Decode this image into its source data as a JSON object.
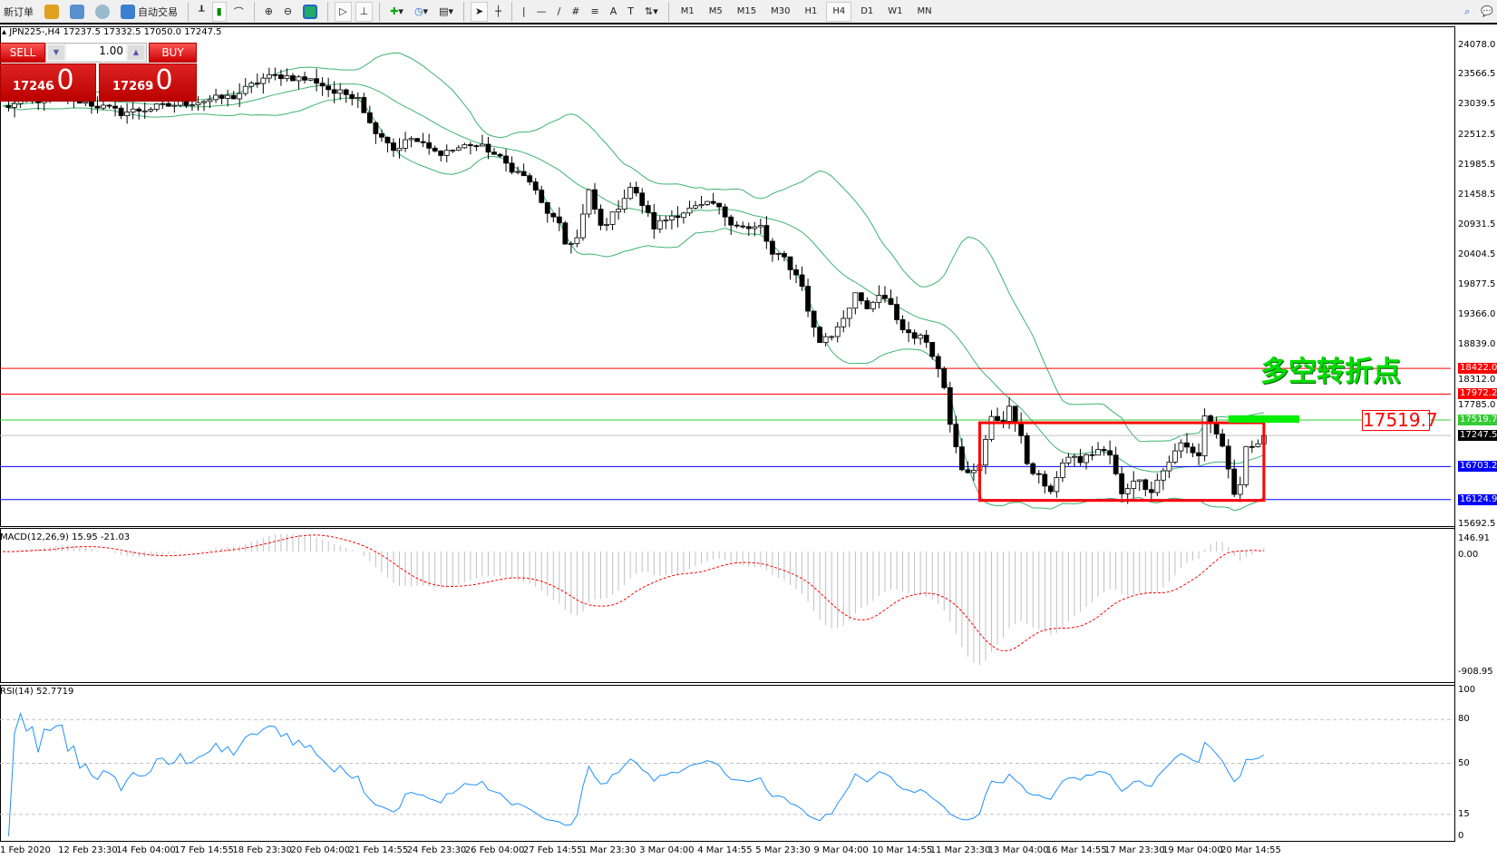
{
  "toolbar": {
    "new_order": "新订单",
    "auto_trade": "自动交易",
    "timeframes": [
      "M1",
      "M5",
      "M15",
      "M30",
      "H1",
      "H4",
      "D1",
      "W1",
      "MN"
    ],
    "active_timeframe": "H4",
    "icons": [
      "gold-bars-icon",
      "market-watch-icon",
      "signals-icon",
      "auto-trade-icon",
      "bar-chart-icon",
      "candlestick-icon",
      "line-chart-icon",
      "zoom-in-icon",
      "zoom-out-icon",
      "tile-windows-icon",
      "auto-scroll-icon",
      "chart-shift-icon",
      "indicators-icon",
      "periods-icon",
      "templates-icon",
      "cursor-icon",
      "crosshair-icon",
      "vertical-line-icon",
      "horizontal-line-icon",
      "trendline-icon",
      "fibonacci-icon",
      "fibo-fan-icon",
      "text-icon",
      "text-label-icon",
      "arrows-icon",
      "search-icon",
      "chat-icon"
    ]
  },
  "chart": {
    "symbol_line": "JPN225-,H4  17237.5 17332.5 17050.0 17247.5",
    "macd_label": "MACD(12,26,9) 15.95 -21.03",
    "rsi_label": "RSI(14) 52.7719",
    "annotation": "多空转折点",
    "price_box": "17519.7",
    "price_axis": [
      "24078.0",
      "23566.5",
      "23039.5",
      "22512.5",
      "21985.5",
      "21458.5",
      "20931.5",
      "20404.5",
      "19877.5",
      "19366.0",
      "18839.0",
      "18312.0",
      "17785.0",
      "15692.5"
    ],
    "price_axis_range": [
      15692.5,
      24078.0
    ],
    "macd_axis": [
      "146.91",
      "0.00",
      "-908.95"
    ],
    "rsi_axis": [
      "100",
      "80",
      "50",
      "15",
      "0"
    ],
    "dates": [
      "1 Feb 2020",
      "12 Feb 23:30",
      "14 Feb 04:00",
      "17 Feb 14:55",
      "18 Feb 23:30",
      "20 Feb 04:00",
      "21 Feb 14:55",
      "24 Feb 23:30",
      "26 Feb 04:00",
      "27 Feb 14:55",
      "1 Mar 23:30",
      "3 Mar 04:00",
      "4 Mar 14:55",
      "5 Mar 23:30",
      "9 Mar 04:00",
      "10 Mar 14:55",
      "11 Mar 23:30",
      "13 Mar 04:00",
      "16 Mar 14:55",
      "17 Mar 23:30",
      "19 Mar 04:00",
      "20 Mar 14:55"
    ],
    "hlines": [
      {
        "price": 18422.0,
        "label": "18422.0",
        "color": "#ff0000"
      },
      {
        "price": 17972.2,
        "label": "17972.2",
        "color": "#ff0000"
      },
      {
        "price": 17519.7,
        "label": "17519.7",
        "color": "#33cc33"
      },
      {
        "price": 17247.5,
        "label": "17247.5",
        "color": "#000000",
        "line": "#c0c0c0"
      },
      {
        "price": 16703.2,
        "label": "16703.2",
        "color": "#0000ff"
      },
      {
        "price": 16124.9,
        "label": "16124.9",
        "color": "#0000ff"
      }
    ],
    "box": {
      "from_bar": 165,
      "to_bar": 213,
      "high": 17470,
      "low": 16110,
      "color": "#ff0000"
    },
    "green_bar": {
      "from_bar": 207,
      "to_bar": 219,
      "high": 17600,
      "low": 17470,
      "color": "#00ee00"
    },
    "close_path": [
      [
        0,
        23000
      ],
      [
        10,
        23200
      ],
      [
        20,
        22900
      ],
      [
        33,
        23100
      ],
      [
        39,
        23180
      ],
      [
        44,
        23500
      ],
      [
        47,
        23550
      ],
      [
        53,
        23450
      ],
      [
        56,
        23250
      ],
      [
        60,
        23200
      ],
      [
        62,
        22700
      ],
      [
        65,
        22400
      ],
      [
        66,
        22250
      ],
      [
        69,
        22450
      ],
      [
        73,
        22200
      ],
      [
        76,
        22250
      ],
      [
        79,
        22350
      ],
      [
        82,
        22250
      ],
      [
        85,
        22000
      ],
      [
        89,
        21700
      ],
      [
        91,
        21300
      ],
      [
        94,
        20900
      ],
      [
        95,
        20600
      ],
      [
        97,
        20700
      ],
      [
        99,
        21500
      ],
      [
        101,
        20900
      ],
      [
        103,
        21100
      ],
      [
        106,
        21600
      ],
      [
        108,
        21300
      ],
      [
        110,
        20900
      ],
      [
        113,
        21100
      ],
      [
        116,
        21200
      ],
      [
        120,
        21300
      ],
      [
        123,
        21000
      ],
      [
        126,
        20850
      ],
      [
        128,
        20900
      ],
      [
        130,
        20400
      ],
      [
        132,
        20350
      ],
      [
        135,
        19900
      ],
      [
        136,
        19400
      ],
      [
        138,
        18900
      ],
      [
        140,
        19000
      ],
      [
        143,
        19500
      ],
      [
        144,
        19800
      ],
      [
        146,
        19400
      ],
      [
        148,
        19700
      ],
      [
        150,
        19500
      ],
      [
        152,
        19100
      ],
      [
        156,
        18900
      ],
      [
        157,
        18700
      ],
      [
        159,
        18100
      ],
      [
        160,
        17500
      ],
      [
        162,
        16700
      ],
      [
        164,
        16600
      ],
      [
        165,
        16700
      ],
      [
        167,
        17600
      ],
      [
        169,
        17500
      ],
      [
        170,
        17700
      ],
      [
        172,
        17300
      ],
      [
        173,
        16700
      ],
      [
        176,
        16400
      ],
      [
        177,
        16300
      ],
      [
        180,
        16900
      ],
      [
        182,
        16800
      ],
      [
        185,
        17000
      ],
      [
        187,
        16900
      ],
      [
        189,
        16200
      ],
      [
        191,
        16500
      ],
      [
        194,
        16300
      ],
      [
        197,
        16800
      ],
      [
        199,
        17100
      ],
      [
        202,
        16900
      ],
      [
        203,
        17600
      ],
      [
        205,
        17300
      ],
      [
        206,
        17000
      ],
      [
        208,
        16200
      ],
      [
        209,
        16400
      ],
      [
        210,
        17000
      ],
      [
        213,
        17247.5
      ]
    ]
  },
  "trade": {
    "sell": "SELL",
    "buy": "BUY",
    "volume": "1.00",
    "sell_price_main": "17246",
    "sell_price_frac": ".0",
    "buy_price_main": "17269",
    "buy_price_frac": ".0"
  },
  "colors": {
    "bollinger": "#3cb371",
    "macd_signal": "#ff0000",
    "macd_hist": "#c0c0c0",
    "rsi": "#1e90ff"
  }
}
